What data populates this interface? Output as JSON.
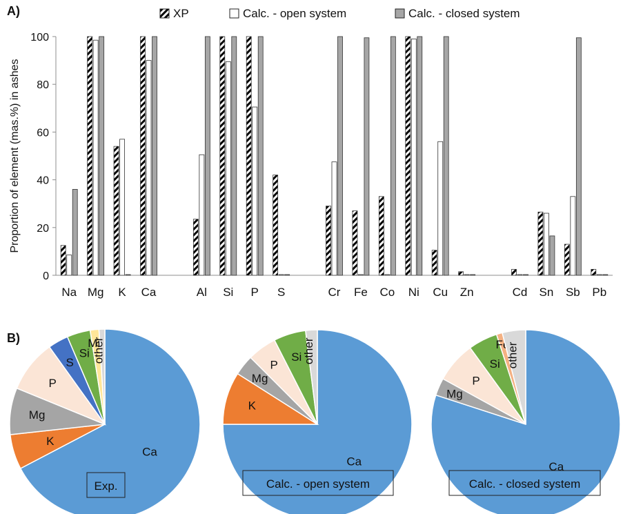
{
  "panel_a": {
    "label": "A)"
  },
  "panel_b": {
    "label": "B)"
  },
  "colors": {
    "xp_fill": "#ffffff",
    "xp_stripe": "#000000",
    "open_fill": "#ffffff",
    "closed_fill": "#a6a6a6",
    "axis": "#8c8c8c",
    "bar_stroke": "#333333"
  },
  "chart_data": [
    {
      "type": "bar",
      "title": "",
      "xlabel": "",
      "ylabel": "Proportion of element (mas.%) in ashes",
      "ylim": [
        0,
        100
      ],
      "yticks": [
        "0",
        "20",
        "40",
        "60",
        "80",
        "100"
      ],
      "grid": false,
      "legend_position": "top",
      "categories": [
        "Na",
        "Mg",
        "K",
        "Ca",
        "",
        "Al",
        "Si",
        "P",
        "S",
        "",
        "Cr",
        "Fe",
        "Co",
        "Ni",
        "Cu",
        "Zn",
        "",
        "Cd",
        "Sn",
        "Sb",
        "Pb"
      ],
      "series": [
        {
          "name": "XP",
          "pattern": "hatched",
          "values": [
            12.5,
            100,
            54,
            100,
            null,
            23.5,
            100,
            100,
            42,
            null,
            29,
            27,
            33,
            100,
            10.5,
            1.5,
            null,
            2.5,
            26.5,
            13,
            2.5
          ]
        },
        {
          "name": "Calc. - open system",
          "pattern": "white",
          "values": [
            8.5,
            98.5,
            57,
            90,
            null,
            50.5,
            89.5,
            70.5,
            0.3,
            null,
            47.5,
            0.3,
            0.3,
            99,
            56,
            0.3,
            null,
            0.3,
            26,
            33,
            0.3
          ]
        },
        {
          "name": "Calc. - closed system",
          "pattern": "grey",
          "values": [
            36,
            100,
            0.3,
            100,
            null,
            100,
            100,
            100,
            0.3,
            null,
            100,
            99.5,
            100,
            100,
            100,
            0.3,
            null,
            0.3,
            16.5,
            99.5,
            0.3
          ]
        }
      ]
    },
    {
      "type": "pie",
      "box_label": "Exp.",
      "slices": [
        {
          "label": "Ca",
          "value": 68.0,
          "color": "#5b9bd5"
        },
        {
          "label": "K",
          "value": 6.0,
          "color": "#ed7d31"
        },
        {
          "label": "Mg",
          "value": 8.0,
          "color": "#a5a5a5"
        },
        {
          "label": "P",
          "value": 9.0,
          "color": "#fbe5d6"
        },
        {
          "label": "S",
          "value": 3.5,
          "color": "#4472c4"
        },
        {
          "label": "Si",
          "value": 4.0,
          "color": "#70ad47"
        },
        {
          "label": "Mn",
          "value": 1.5,
          "color": "#ffe699"
        },
        {
          "label": "other",
          "value": 1.0,
          "color": "#d9d9d9"
        }
      ]
    },
    {
      "type": "pie",
      "box_label": "Calc. - open system",
      "slices": [
        {
          "label": "Ca",
          "value": 75.0,
          "color": "#5b9bd5"
        },
        {
          "label": "K",
          "value": 9.0,
          "color": "#ed7d31"
        },
        {
          "label": "Mg",
          "value": 3.5,
          "color": "#a5a5a5"
        },
        {
          "label": "P",
          "value": 5.0,
          "color": "#fbe5d6"
        },
        {
          "label": "Si",
          "value": 5.5,
          "color": "#70ad47"
        },
        {
          "label": "other",
          "value": 2.0,
          "color": "#d9d9d9"
        }
      ]
    },
    {
      "type": "pie",
      "box_label": "Calc. - closed system",
      "slices": [
        {
          "label": "Ca",
          "value": 80.0,
          "color": "#5b9bd5"
        },
        {
          "label": "Mg",
          "value": 3.0,
          "color": "#a5a5a5"
        },
        {
          "label": "P",
          "value": 7.0,
          "color": "#fbe5d6"
        },
        {
          "label": "Si",
          "value": 5.0,
          "color": "#70ad47"
        },
        {
          "label": "Fe",
          "value": 1.0,
          "color": "#f4b183"
        },
        {
          "label": "other",
          "value": 4.0,
          "color": "#d9d9d9"
        }
      ]
    }
  ]
}
